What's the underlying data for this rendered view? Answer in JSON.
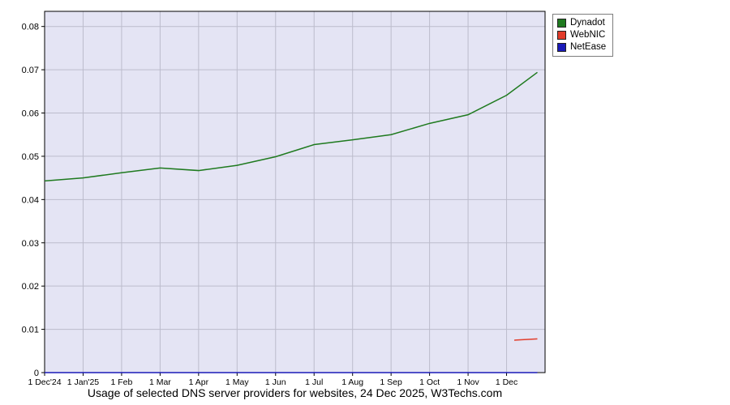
{
  "chart_data": {
    "type": "line",
    "title": "Usage of selected DNS server providers for websites, 24 Dec 2025, W3Techs.com",
    "x_unit": "months since 1 Dec 2024",
    "x_tick_labels": [
      "1 Dec'24",
      "1 Jan'25",
      "1 Feb",
      "1 Mar",
      "1 Apr",
      "1 May",
      "1 Jun",
      "1 Jul",
      "1 Aug",
      "1 Sep",
      "1 Oct",
      "1 Nov",
      "1 Dec"
    ],
    "y_tick_values": [
      0,
      0.01,
      0.02,
      0.03,
      0.04,
      0.05,
      0.06,
      0.07,
      0.08
    ],
    "xlim": [
      0,
      13
    ],
    "ylim": [
      0,
      0.0835
    ],
    "grid": true,
    "legend_position": "top-right-outside",
    "plot_bg": "#e4e4f4",
    "grid_color": "#bcbccc",
    "axis_color": "#000000",
    "series": [
      {
        "name": "Dynadot",
        "color": "#1f7a1f",
        "x": [
          0,
          1,
          2,
          3,
          4,
          5,
          6,
          7,
          8,
          9,
          10,
          11,
          12,
          12.8
        ],
        "values": [
          0.0443,
          0.045,
          0.0462,
          0.0473,
          0.0467,
          0.0479,
          0.0499,
          0.0527,
          0.0538,
          0.055,
          0.0576,
          0.0596,
          0.0641,
          0.0694
        ]
      },
      {
        "name": "WebNIC",
        "color": "#e23c2a",
        "x": [
          12.2,
          12.8
        ],
        "values": [
          0.0075,
          0.0078
        ]
      },
      {
        "name": "NetEase",
        "color": "#1a1ab8",
        "x": [
          0,
          12.8
        ],
        "values": [
          0,
          0
        ]
      }
    ]
  }
}
